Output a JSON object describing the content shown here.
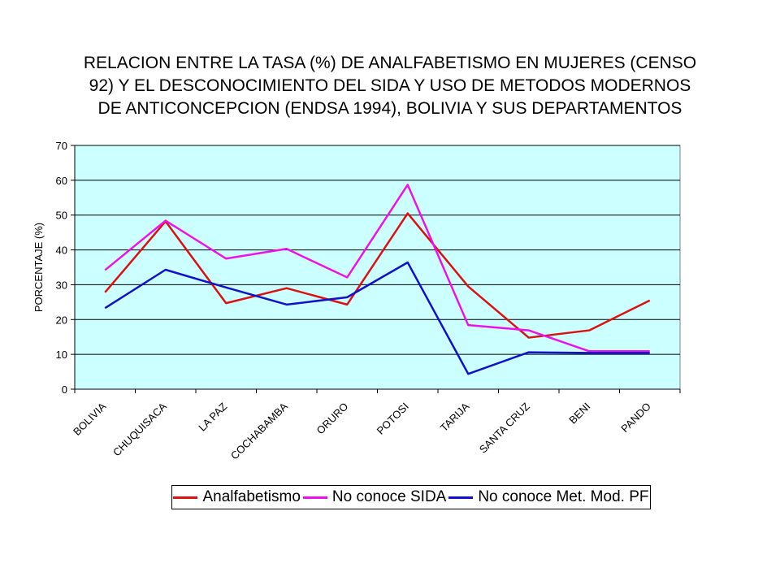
{
  "chart_data": {
    "type": "line",
    "title_lines": [
      "RELACION ENTRE LA TASA (%) DE ANALFABETISMO EN MUJERES (CENSO",
      "92) Y EL DESCONOCIMIENTO DEL SIDA Y USO DE METODOS MODERNOS",
      "DE ANTICONCEPCION (ENDSA 1994), BOLIVIA Y SUS DEPARTAMENTOS"
    ],
    "ylabel": "PORCENTAJE (%)",
    "xlabel": "",
    "ylim": [
      0,
      70
    ],
    "yticks": [
      0,
      10,
      20,
      30,
      40,
      50,
      60,
      70
    ],
    "grid": true,
    "plot_background": "#ccffff",
    "legend_position": "bottom",
    "categories": [
      "BOLIVIA",
      "CHUQUISACA",
      "LA PAZ",
      "COCHABAMBA",
      "ORURO",
      "POTOSI",
      "TARIJA",
      "SANTA CRUZ",
      "BENI",
      "PANDO"
    ],
    "series": [
      {
        "name": "Analfabetismo",
        "color": "#dd1111",
        "values": [
          27.8,
          48.2,
          24.7,
          29.0,
          24.3,
          50.5,
          29.5,
          14.8,
          16.9,
          25.5
        ]
      },
      {
        "name": "No conoce SIDA",
        "color": "#ee11ee",
        "values": [
          34.2,
          48.4,
          37.5,
          40.3,
          32.1,
          58.7,
          18.4,
          16.9,
          10.9,
          10.9
        ]
      },
      {
        "name": "No conoce Met. Mod. PF",
        "color": "#1111cc",
        "values": [
          23.3,
          34.3,
          29.2,
          24.3,
          26.4,
          36.4,
          4.4,
          10.6,
          10.4,
          10.4
        ]
      }
    ]
  }
}
